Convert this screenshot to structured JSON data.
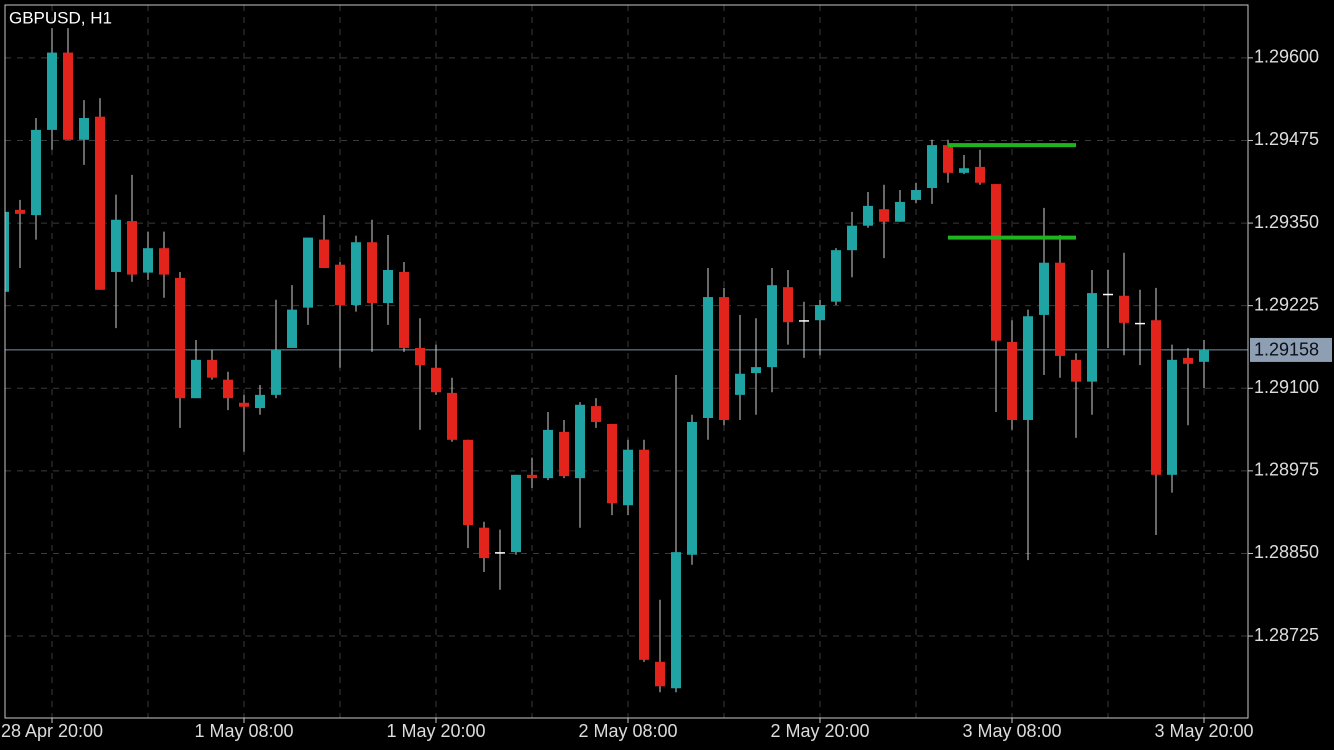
{
  "chart_data": {
    "type": "candlestick",
    "title": "GBPUSD, H1",
    "categories": [
      null,
      null,
      null,
      "28 Apr 20:00",
      null,
      null,
      null,
      null,
      null,
      null,
      null,
      null,
      null,
      null,
      null,
      "1 May 08:00",
      null,
      null,
      null,
      null,
      null,
      null,
      null,
      null,
      null,
      null,
      null,
      "1 May 20:00",
      null,
      null,
      null,
      null,
      null,
      null,
      null,
      null,
      null,
      null,
      null,
      "2 May 08:00",
      null,
      null,
      null,
      null,
      null,
      null,
      null,
      null,
      null,
      null,
      null,
      "2 May 20:00",
      null,
      null,
      null,
      null,
      null,
      null,
      null,
      null,
      null,
      null,
      null,
      "3 May 08:00",
      null,
      null,
      null,
      null,
      null,
      null,
      null,
      null,
      null,
      null,
      null,
      "3 May 20:00"
    ],
    "open": [
      1.29246,
      1.2937,
      1.29362,
      1.29491,
      1.29608,
      1.29476,
      1.29511,
      1.29276,
      1.29353,
      1.29275,
      1.29312,
      1.29267,
      1.29085,
      1.29143,
      1.29113,
      1.29078,
      1.2907,
      1.2909,
      1.29161,
      1.29222,
      1.29325,
      1.29287,
      1.29226,
      1.29321,
      1.29229,
      1.29276,
      1.29161,
      1.29131,
      1.29093,
      1.29022,
      1.28889,
      1.28852,
      1.28852,
      1.28969,
      1.28964,
      1.29034,
      1.28964,
      1.29073,
      1.29046,
      1.28923,
      1.29007,
      1.28686,
      1.28646,
      1.28848,
      1.29055,
      1.29238,
      1.2909,
      1.29123,
      1.29132,
      1.29253,
      1.29203,
      1.29203,
      1.29231,
      1.29309,
      1.29346,
      1.29371,
      1.29352,
      1.29385,
      1.29403,
      1.29468,
      1.29426,
      1.29435,
      1.29409,
      1.2917,
      1.29052,
      1.29211,
      1.2929,
      1.29143,
      1.2911,
      1.29243,
      1.2924,
      1.29199,
      1.29203,
      1.28969,
      1.29146,
      1.2914
    ],
    "high": [
      1.29385,
      1.29385,
      1.29509,
      1.29645,
      1.29645,
      1.29536,
      1.29539,
      1.29393,
      1.29423,
      1.29337,
      1.29337,
      1.29276,
      1.29173,
      1.29158,
      1.29125,
      1.2909,
      1.29105,
      1.29234,
      1.29256,
      1.29328,
      1.29362,
      1.29291,
      1.29331,
      1.29355,
      1.29332,
      1.29291,
      1.29206,
      1.29166,
      1.29116,
      1.29022,
      1.28898,
      1.28886,
      1.28969,
      1.28995,
      1.29064,
      1.29052,
      1.29079,
      1.29085,
      1.29046,
      1.29022,
      1.29022,
      1.2878,
      1.2912,
      1.2906,
      1.29282,
      1.29252,
      1.29211,
      1.29206,
      1.29282,
      1.29279,
      1.29231,
      1.29234,
      1.29312,
      1.29367,
      1.29397,
      1.29408,
      1.294,
      1.29411,
      1.29476,
      1.29476,
      1.29453,
      1.29461,
      1.29409,
      1.29203,
      1.29219,
      1.29373,
      1.29332,
      1.29153,
      1.29279,
      1.29279,
      1.29305,
      1.29249,
      1.29252,
      1.29166,
      1.29161,
      1.29173
    ],
    "low": [
      1.29246,
      1.29282,
      1.29325,
      1.29461,
      1.29476,
      1.29438,
      1.29249,
      1.29191,
      1.29261,
      1.29264,
      1.29237,
      1.2904,
      1.29085,
      1.29113,
      1.29067,
      1.29004,
      1.2906,
      1.29085,
      1.29161,
      1.29196,
      1.29282,
      1.29131,
      1.29216,
      1.29155,
      1.29196,
      1.29155,
      1.29037,
      1.2909,
      1.29019,
      1.28858,
      1.28822,
      1.28795,
      1.28848,
      1.28949,
      1.28961,
      1.28964,
      1.28889,
      1.2904,
      1.28908,
      1.28908,
      1.28686,
      1.2864,
      1.2864,
      1.28833,
      1.29022,
      1.29044,
      1.29052,
      1.2906,
      1.29094,
      1.29166,
      1.29146,
      1.2915,
      1.29226,
      1.29268,
      1.29343,
      1.29297,
      1.29352,
      1.2938,
      1.29379,
      1.29411,
      1.29424,
      1.29408,
      1.29064,
      1.29037,
      1.2884,
      1.2912,
      1.29116,
      1.29025,
      1.2906,
      1.29161,
      1.2915,
      1.29135,
      1.28878,
      1.28942,
      1.29044,
      1.291
    ],
    "close": [
      1.29367,
      1.29364,
      1.29491,
      1.29608,
      1.29476,
      1.29509,
      1.29249,
      1.29355,
      1.29272,
      1.29312,
      1.29272,
      1.29085,
      1.29143,
      1.29116,
      1.29085,
      1.29072,
      1.2909,
      1.29158,
      1.29219,
      1.29328,
      1.29282,
      1.29226,
      1.29321,
      1.29229,
      1.29279,
      1.29161,
      1.29135,
      1.29094,
      1.29022,
      1.28893,
      1.28843,
      1.28852,
      1.28969,
      1.28964,
      1.29037,
      1.28967,
      1.29075,
      1.29049,
      1.28926,
      1.29007,
      1.28689,
      1.28649,
      1.28852,
      1.29049,
      1.29238,
      1.29052,
      1.29122,
      1.29132,
      1.29256,
      1.292,
      1.29203,
      1.29226,
      1.29309,
      1.29346,
      1.29376,
      1.29352,
      1.29382,
      1.294,
      1.29468,
      1.29426,
      1.29433,
      1.29411,
      1.29172,
      1.29052,
      1.29209,
      1.2929,
      1.29149,
      1.2911,
      1.29244,
      1.29243,
      1.29199,
      1.29199,
      1.28969,
      1.29143,
      1.29137,
      1.29158
    ],
    "up_color": "#20a3a3",
    "down_color": "#e3241d",
    "doji_color": "#ffffff",
    "ylim": [
      1.28601,
      1.2968
    ],
    "yticks": [
      {
        "value": 1.296,
        "label": "1.29600"
      },
      1.29475,
      {
        "value": 1.2935,
        "label": "1.29350"
      },
      1.29225,
      {
        "value": 1.291,
        "label": "1.29100"
      },
      1.28975,
      {
        "value": 1.2885,
        "label": "1.28850"
      },
      1.28725
    ],
    "grid": true,
    "last_price": 1.29158,
    "hlines": [
      {
        "value": 1.29468,
        "from": 59,
        "to": 67,
        "color": "#1fb41f"
      },
      {
        "value": 1.29328,
        "from": 59,
        "to": 67,
        "color": "#1fb41f"
      }
    ]
  }
}
